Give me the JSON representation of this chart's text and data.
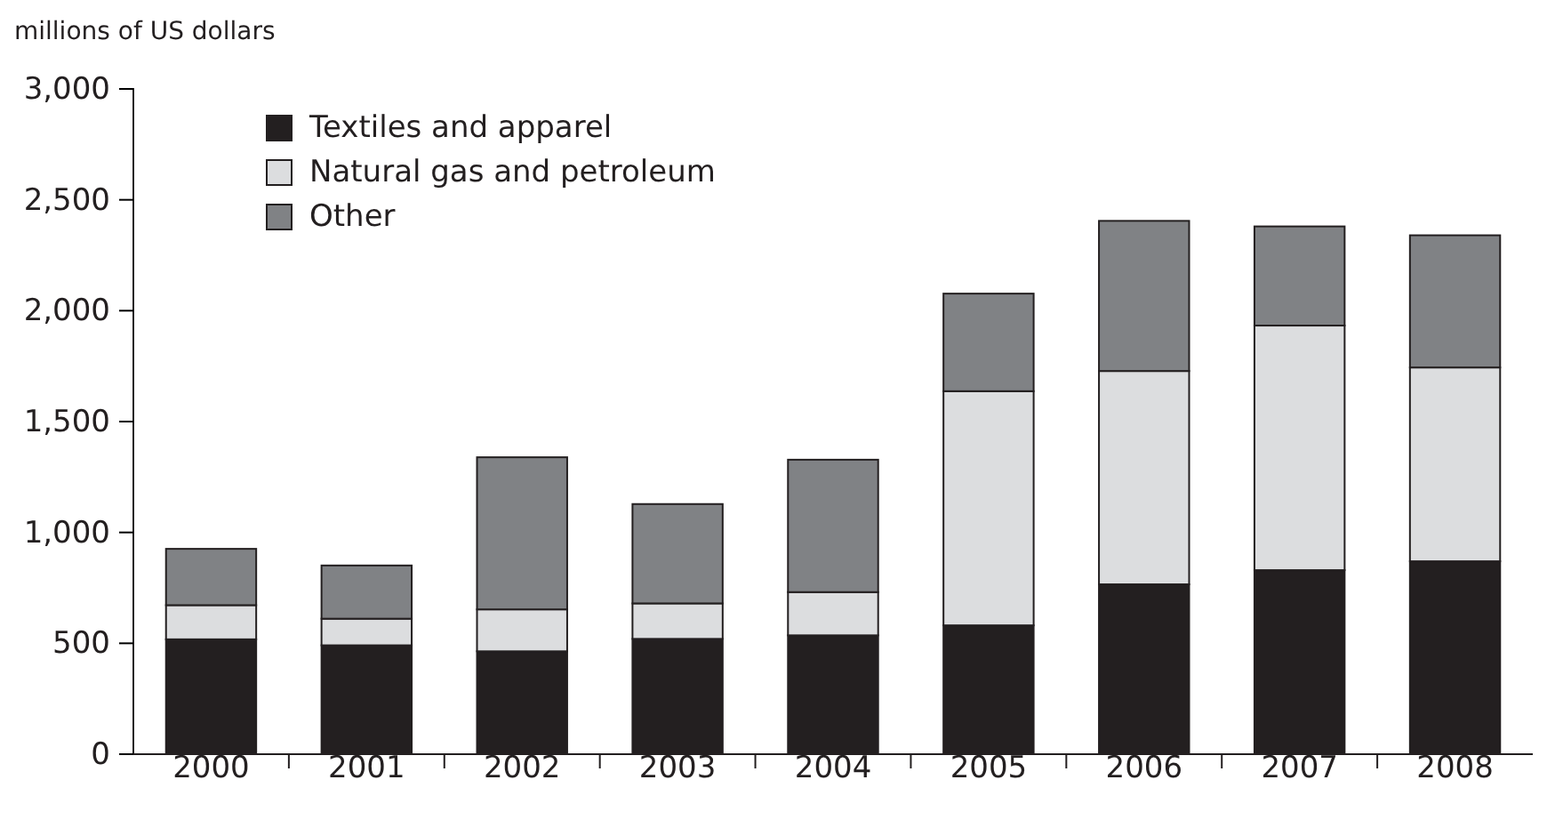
{
  "chart_data": {
    "type": "bar",
    "ylabel": "millions of US dollars",
    "categories": [
      "2000",
      "2001",
      "2002",
      "2003",
      "2004",
      "2005",
      "2006",
      "2007",
      "2008"
    ],
    "stacked": true,
    "series": [
      {
        "name": "Textiles and apparel",
        "color": "#231f20",
        "values": [
          518,
          491,
          464,
          520,
          536,
          581,
          766,
          830,
          870
        ]
      },
      {
        "name": "Natural gas and petroleum",
        "color": "#dcdddf",
        "values": [
          154,
          120,
          189,
          160,
          195,
          1056,
          962,
          1103,
          874
        ]
      },
      {
        "name": "Other",
        "color": "#808285",
        "values": [
          254,
          240,
          686,
          448,
          597,
          440,
          677,
          447,
          596
        ]
      }
    ],
    "ylim": [
      0,
      3000
    ],
    "yticks": [
      {
        "value": 0,
        "label": "0"
      },
      {
        "value": 500,
        "label": "500"
      },
      {
        "value": 1000,
        "label": "1,000"
      },
      {
        "value": 1500,
        "label": "1,500"
      },
      {
        "value": 2000,
        "label": "2,000"
      },
      {
        "value": 2500,
        "label": "2,500"
      },
      {
        "value": 3000,
        "label": "3,000"
      }
    ],
    "legend": "top left",
    "grid": false
  }
}
